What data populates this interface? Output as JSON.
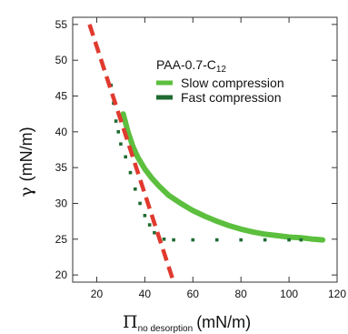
{
  "chart_data": {
    "type": "scatter",
    "xlim": [
      10,
      120
    ],
    "ylim": [
      19,
      56
    ],
    "x_ticks": [
      20,
      40,
      60,
      80,
      100,
      120
    ],
    "y_ticks": [
      20,
      25,
      30,
      35,
      40,
      45,
      50,
      55
    ],
    "ylabel": {
      "symbol": "γ",
      "unit": "(mN/m)"
    },
    "xlabel": {
      "symbol": "Π",
      "subscript": "no desorption",
      "unit": "(mN/m)"
    },
    "legend": {
      "title": {
        "main": "PAA-0.7-C",
        "subscript": "12"
      },
      "placement": "top-right",
      "entries": [
        "Slow compression",
        "Fast compression"
      ]
    },
    "series": [
      {
        "name": "Slow compression",
        "color": "#5cbf3e",
        "points": [
          [
            31,
            42.5
          ],
          [
            33,
            40.0
          ],
          [
            35,
            38.0
          ],
          [
            37,
            36.5
          ],
          [
            40,
            34.8
          ],
          [
            43,
            33.5
          ],
          [
            46,
            32.4
          ],
          [
            50,
            31.1
          ],
          [
            55,
            30.0
          ],
          [
            60,
            29.0
          ],
          [
            65,
            28.2
          ],
          [
            70,
            27.5
          ],
          [
            75,
            26.9
          ],
          [
            80,
            26.4
          ],
          [
            85,
            26.0
          ],
          [
            90,
            25.7
          ],
          [
            95,
            25.5
          ],
          [
            100,
            25.3
          ],
          [
            105,
            25.2
          ],
          [
            110,
            25.0
          ],
          [
            114,
            24.9
          ]
        ]
      },
      {
        "name": "Fast compression",
        "color": "#1f6b30",
        "points": [
          [
            26,
            46.5
          ],
          [
            27,
            44.0
          ],
          [
            28,
            41.5
          ],
          [
            29,
            40.0
          ],
          [
            30,
            38.3
          ],
          [
            32,
            36.5
          ],
          [
            34,
            34.3
          ],
          [
            36,
            32.0
          ],
          [
            38,
            30.0
          ],
          [
            40,
            28.3
          ],
          [
            42,
            27.0
          ],
          [
            44,
            25.9
          ],
          [
            46,
            25.2
          ],
          [
            48,
            25.0
          ],
          [
            52,
            24.9
          ],
          [
            60,
            24.9
          ],
          [
            70,
            24.9
          ],
          [
            80,
            24.9
          ],
          [
            90,
            24.9
          ],
          [
            100,
            24.9
          ],
          [
            105,
            24.9
          ]
        ]
      }
    ],
    "reference_line": {
      "color": "#e03a2f",
      "style": "dashed",
      "x": [
        17,
        52
      ],
      "y": [
        55,
        19
      ]
    }
  }
}
